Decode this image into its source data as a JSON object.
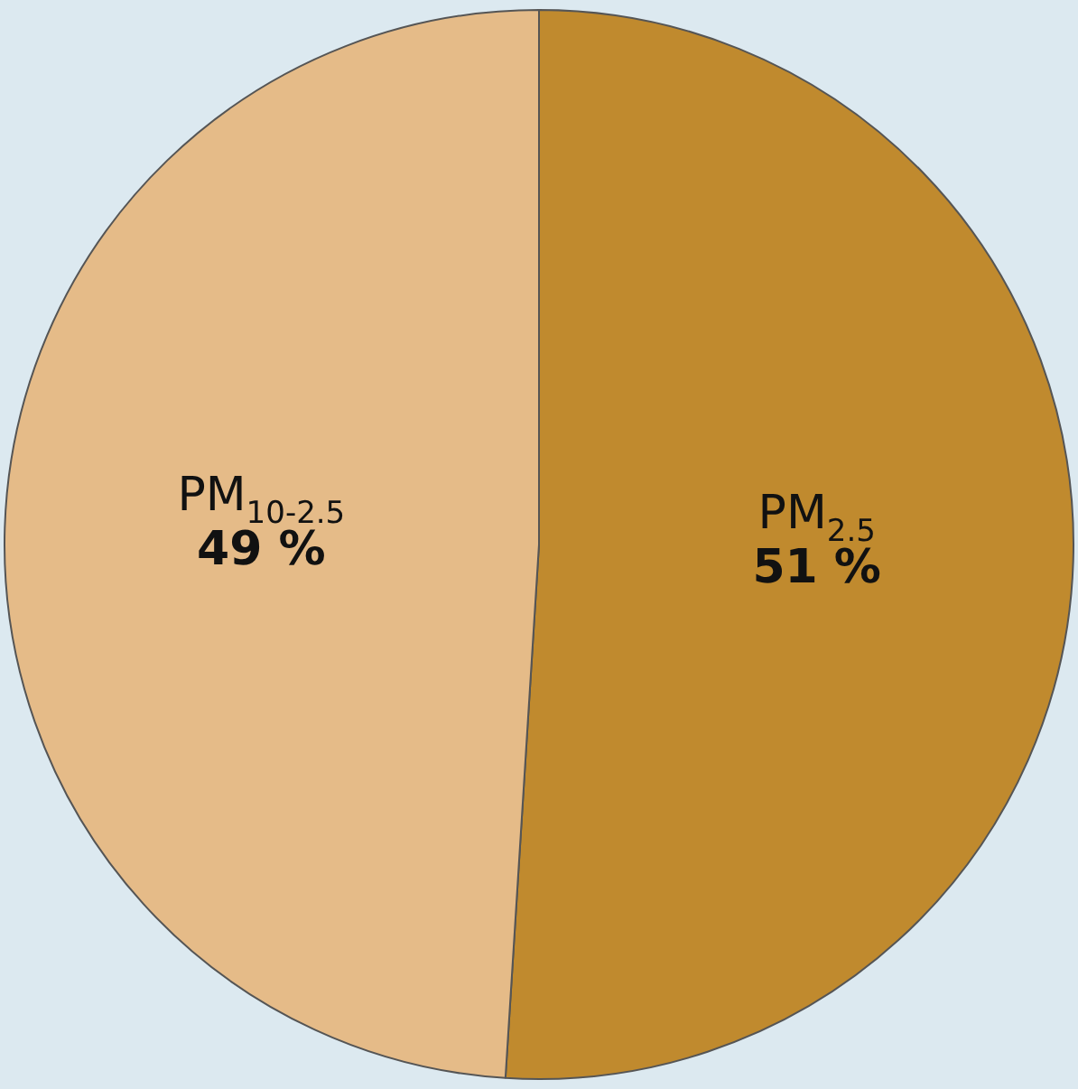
{
  "chart_data": {
    "type": "pie",
    "categories": [
      "PM$_{2.5}$",
      "PM$_{10-2.5}$"
    ],
    "values": [
      51,
      49
    ],
    "colors": [
      "#c08a2e",
      "#e5bb88"
    ],
    "value_labels": [
      "51 %",
      "49 %"
    ],
    "legend": false
  }
}
